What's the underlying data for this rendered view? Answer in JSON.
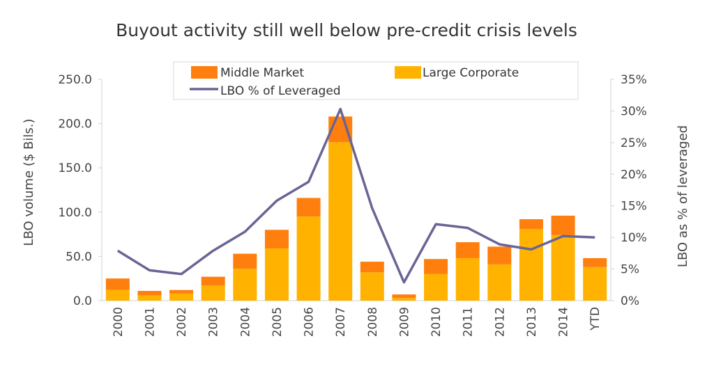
{
  "chart_data": {
    "type": "bar",
    "title": "Buyout activity still well below pre-credit crisis levels",
    "categories": [
      "2000",
      "2001",
      "2002",
      "2003",
      "2004",
      "2005",
      "2006",
      "2007",
      "2008",
      "2009",
      "2010",
      "2011",
      "2012",
      "2013",
      "2014",
      "YTD"
    ],
    "series": [
      {
        "name": "Large Corporate",
        "kind": "bar",
        "axis": "left",
        "stacked": true,
        "color": "#FFB300",
        "values": [
          12,
          6,
          8,
          17,
          36,
          59,
          95,
          179,
          32,
          3,
          30,
          48,
          41,
          81,
          74,
          38
        ]
      },
      {
        "name": "Middle Market",
        "kind": "bar",
        "axis": "left",
        "stacked": true,
        "color": "#FF7F0E",
        "values": [
          13,
          5,
          4,
          10,
          17,
          21,
          21,
          29,
          12,
          4,
          17,
          18,
          20,
          11,
          22,
          10
        ]
      },
      {
        "name": "LBO % of Leveraged",
        "kind": "line",
        "axis": "right",
        "color": "#6A6494",
        "values": [
          0.079,
          0.048,
          0.042,
          0.079,
          0.109,
          0.158,
          0.188,
          0.303,
          0.146,
          0.029,
          0.121,
          0.115,
          0.089,
          0.081,
          0.102,
          0.1
        ]
      }
    ],
    "ylabel": "LBO volume ($ Bils.)",
    "y2label": "LBO as % of leveraged",
    "ylim": [
      0,
      250
    ],
    "y2lim": [
      0,
      0.35
    ],
    "yticks": [
      "0.0",
      "50.0",
      "100.0",
      "150.0",
      "200.0",
      "250.0"
    ],
    "y2ticks": [
      "0%",
      "5%",
      "10%",
      "15%",
      "20%",
      "25%",
      "30%",
      "35%"
    ],
    "grid": false,
    "legend_position": "top",
    "legend_labels": {
      "middle": "Middle Market",
      "large": "Large Corporate",
      "line": "LBO % of Leveraged"
    }
  }
}
